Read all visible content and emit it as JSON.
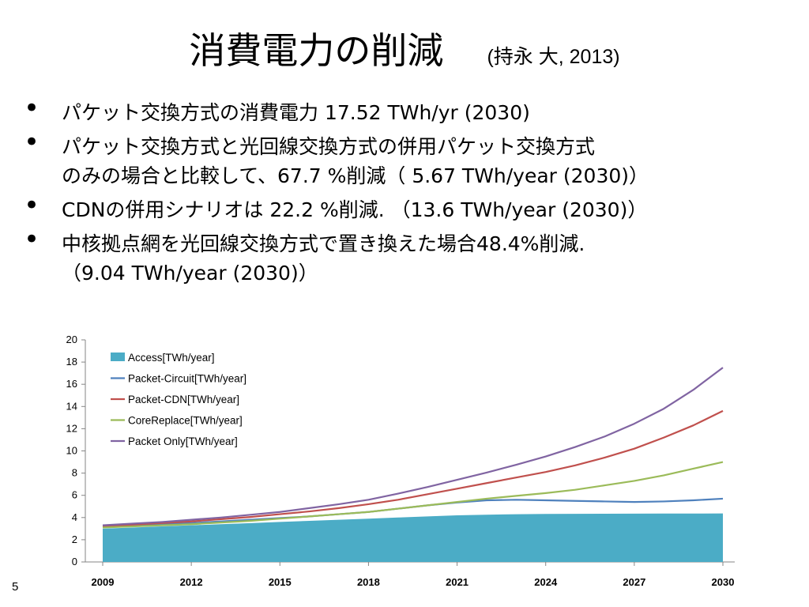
{
  "slide": {
    "title": "消費電力の削減",
    "subtitle": "(持永 大, 2013)",
    "page_number": "5"
  },
  "bullets": [
    "パケット交換方式の消費電力 17.52 TWh/yr (2030)",
    "パケット交換方式と光回線交換方式の併用パケット交換方式\nのみの場合と比較して、67.7 %削減（ 5.67 TWh/year (2030)）",
    "CDNの併用シナリオは 22.2 %削減. （13.6 TWh/year (2030)）",
    "中核拠点網を光回線交換方式で置き換えた場合48.4%削減.\n（9.04 TWh/year (2030)）"
  ],
  "chart_data": {
    "type": "area",
    "x": [
      2009,
      2010,
      2011,
      2012,
      2013,
      2014,
      2015,
      2016,
      2017,
      2018,
      2019,
      2020,
      2021,
      2022,
      2023,
      2024,
      2025,
      2026,
      2027,
      2028,
      2029,
      2030
    ],
    "xticks": [
      2009,
      2012,
      2015,
      2018,
      2021,
      2024,
      2027,
      2030
    ],
    "ylim": [
      0,
      20
    ],
    "yticks": [
      0,
      2,
      4,
      6,
      8,
      10,
      12,
      14,
      16,
      18,
      20
    ],
    "grid": false,
    "legend_position": "top-left",
    "series": [
      {
        "name": "Access[TWh/year]",
        "kind": "area",
        "color": "#4bacc6",
        "values": [
          3.0,
          3.1,
          3.2,
          3.3,
          3.4,
          3.5,
          3.6,
          3.7,
          3.8,
          3.9,
          4.0,
          4.1,
          4.2,
          4.25,
          4.3,
          4.32,
          4.33,
          4.34,
          4.35,
          4.36,
          4.36,
          4.37
        ]
      },
      {
        "name": "Packet-Circuit[TWh/year]",
        "kind": "line",
        "color": "#4f81bd",
        "values": [
          3.2,
          3.3,
          3.4,
          3.5,
          3.65,
          3.8,
          3.95,
          4.1,
          4.3,
          4.5,
          4.8,
          5.1,
          5.35,
          5.55,
          5.6,
          5.55,
          5.5,
          5.45,
          5.4,
          5.45,
          5.55,
          5.7
        ]
      },
      {
        "name": "Packet-CDN[TWh/year]",
        "kind": "line",
        "color": "#c0504d",
        "values": [
          3.2,
          3.35,
          3.5,
          3.65,
          3.85,
          4.05,
          4.3,
          4.55,
          4.85,
          5.2,
          5.6,
          6.1,
          6.6,
          7.1,
          7.6,
          8.1,
          8.7,
          9.4,
          10.2,
          11.2,
          12.3,
          13.6
        ]
      },
      {
        "name": "CoreReplace[TWh/year]",
        "kind": "line",
        "color": "#9bbb59",
        "values": [
          3.1,
          3.2,
          3.3,
          3.4,
          3.55,
          3.7,
          3.9,
          4.1,
          4.3,
          4.5,
          4.8,
          5.1,
          5.4,
          5.7,
          5.95,
          6.2,
          6.5,
          6.9,
          7.3,
          7.8,
          8.4,
          9.0
        ]
      },
      {
        "name": "Packet Only[TWh/year]",
        "kind": "line",
        "color": "#8064a2",
        "values": [
          3.3,
          3.45,
          3.6,
          3.8,
          4.0,
          4.25,
          4.5,
          4.85,
          5.2,
          5.6,
          6.15,
          6.75,
          7.4,
          8.05,
          8.75,
          9.5,
          10.35,
          11.3,
          12.45,
          13.8,
          15.5,
          17.5
        ]
      }
    ]
  }
}
